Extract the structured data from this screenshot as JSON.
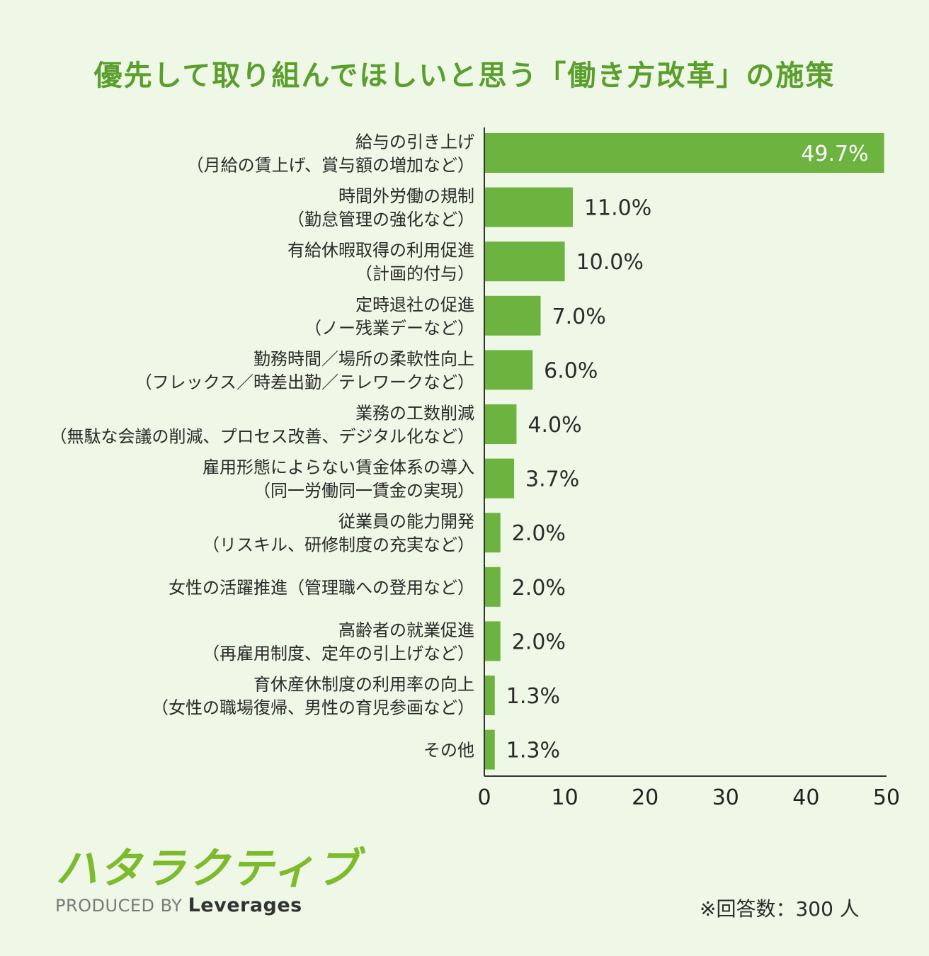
{
  "title": "優先して取り組んでほしいと思う「働き方改革」の施策",
  "chart_data": {
    "type": "bar",
    "orientation": "horizontal",
    "title": "優先して取り組んでほしいと思う「働き方改革」の施策",
    "categories": [
      [
        "給与の引き上げ",
        "（月給の賃上げ、賞与額の増加など）"
      ],
      [
        "時間外労働の規制",
        "（勤怠管理の強化など）"
      ],
      [
        "有給休暇取得の利用促進",
        "（計画的付与）"
      ],
      [
        "定時退社の促進",
        "（ノー残業デーなど）"
      ],
      [
        "勤務時間／場所の柔軟性向上",
        "（フレックス／時差出勤／テレワークなど）"
      ],
      [
        "業務の工数削減",
        "（無駄な会議の削減、プロセス改善、デジタル化など）"
      ],
      [
        "雇用形態によらない賃金体系の導入",
        "（同一労働同一賃金の実現）"
      ],
      [
        "従業員の能力開発",
        "（リスキル、研修制度の充実など）"
      ],
      [
        "女性の活躍推進（管理職への登用など）"
      ],
      [
        "高齢者の就業促進",
        "（再雇用制度、定年の引上げなど）"
      ],
      [
        "育休産休制度の利用率の向上",
        "（女性の職場復帰、男性の育児参画など）"
      ],
      [
        "その他"
      ]
    ],
    "values": [
      49.7,
      11.0,
      10.0,
      7.0,
      6.0,
      4.0,
      3.7,
      2.0,
      2.0,
      2.0,
      1.3,
      1.3
    ],
    "value_labels": [
      "49.7%",
      "11.0%",
      "10.0%",
      "7.0%",
      "6.0%",
      "4.0%",
      "3.7%",
      "2.0%",
      "2.0%",
      "2.0%",
      "1.3%",
      "1.3%"
    ],
    "xlim": [
      0,
      50
    ],
    "xticks": [
      0,
      10,
      20,
      30,
      40,
      50
    ],
    "bar_color": "#6db33f",
    "grid": false
  },
  "brand": {
    "logo_text": "ハタラクティブ",
    "produced_by": "PRODUCED BY",
    "company": "Leverages"
  },
  "note": "※回答数：300 人"
}
